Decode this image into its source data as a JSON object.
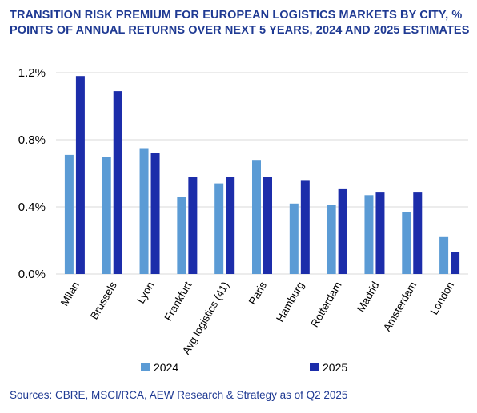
{
  "title_lines": [
    "TRANSITION RISK PREMIUM FOR EUROPEAN LOGISTICS MARKETS BY CITY, %",
    "POINTS OF ANNUAL RETURNS OVER NEXT 5 YEARS, 2024 AND 2025 ESTIMATES"
  ],
  "source": "Sources: CBRE, MSCI/RCA, AEW Research & Strategy as of Q2 2025",
  "colors": {
    "series_2024": "#5b9bd5",
    "series_2025": "#1c2daa",
    "title": "#1f3a93",
    "grid": "#d9d9d9"
  },
  "chart_data": {
    "type": "bar",
    "title": "TRANSITION RISK PREMIUM FOR EUROPEAN LOGISTICS MARKETS BY CITY, % POINTS OF ANNUAL RETURNS OVER NEXT 5 YEARS, 2024 AND 2025 ESTIMATES",
    "xlabel": "",
    "ylabel": "",
    "categories": [
      "Milan",
      "Brussels",
      "Lyon",
      "Frankfurt",
      "Avg logistics (41)",
      "Paris",
      "Hamburg",
      "Rotterdam",
      "Madrid",
      "Amsterdam",
      "London"
    ],
    "series": [
      {
        "name": "2024",
        "values": [
          0.71,
          0.7,
          0.75,
          0.46,
          0.54,
          0.68,
          0.42,
          0.41,
          0.47,
          0.37,
          0.22
        ]
      },
      {
        "name": "2025",
        "values": [
          1.18,
          1.09,
          0.72,
          0.58,
          0.58,
          0.58,
          0.56,
          0.51,
          0.49,
          0.49,
          0.13
        ]
      }
    ],
    "yticks": [
      "0.0%",
      "0.4%",
      "0.8%",
      "1.2%"
    ],
    "ylim": [
      0,
      1.2
    ],
    "grid": true,
    "legend": "bottom"
  }
}
